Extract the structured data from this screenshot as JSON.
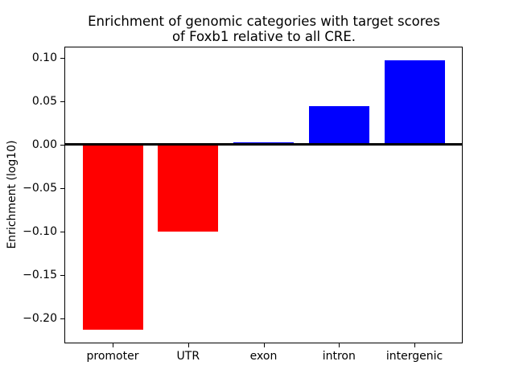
{
  "header": {
    "title_line1": "Enrichment of genomic categories with target scores",
    "title_line2": "of Foxb1 relative to all CRE."
  },
  "chart_data": {
    "type": "bar",
    "title": "Enrichment of genomic categories with target scores\nof Foxb1 relative to all CRE.",
    "xlabel": "",
    "ylabel": "Enrichment (log10)",
    "categories": [
      "promoter",
      "UTR",
      "exon",
      "intron",
      "intergenic"
    ],
    "values": [
      -0.213,
      -0.1,
      0.003,
      0.044,
      0.097
    ],
    "bar_colors": [
      "#ff0000",
      "#ff0000",
      "#0000ff",
      "#0000ff",
      "#0000ff"
    ],
    "negative_color": "#ff0000",
    "positive_color": "#0000ff",
    "ylim": [
      -0.229,
      0.113
    ],
    "yticks": [
      0.1,
      0.05,
      0.0,
      -0.05,
      -0.1,
      -0.15,
      -0.2
    ],
    "ytick_labels": [
      "0.10",
      "0.05",
      "0.00",
      "−0.05",
      "−0.10",
      "−0.15",
      "−0.20"
    ],
    "zero_line": true,
    "grid": false,
    "legend": false,
    "background_color": "#ffffff",
    "axis_color": "#000000"
  }
}
